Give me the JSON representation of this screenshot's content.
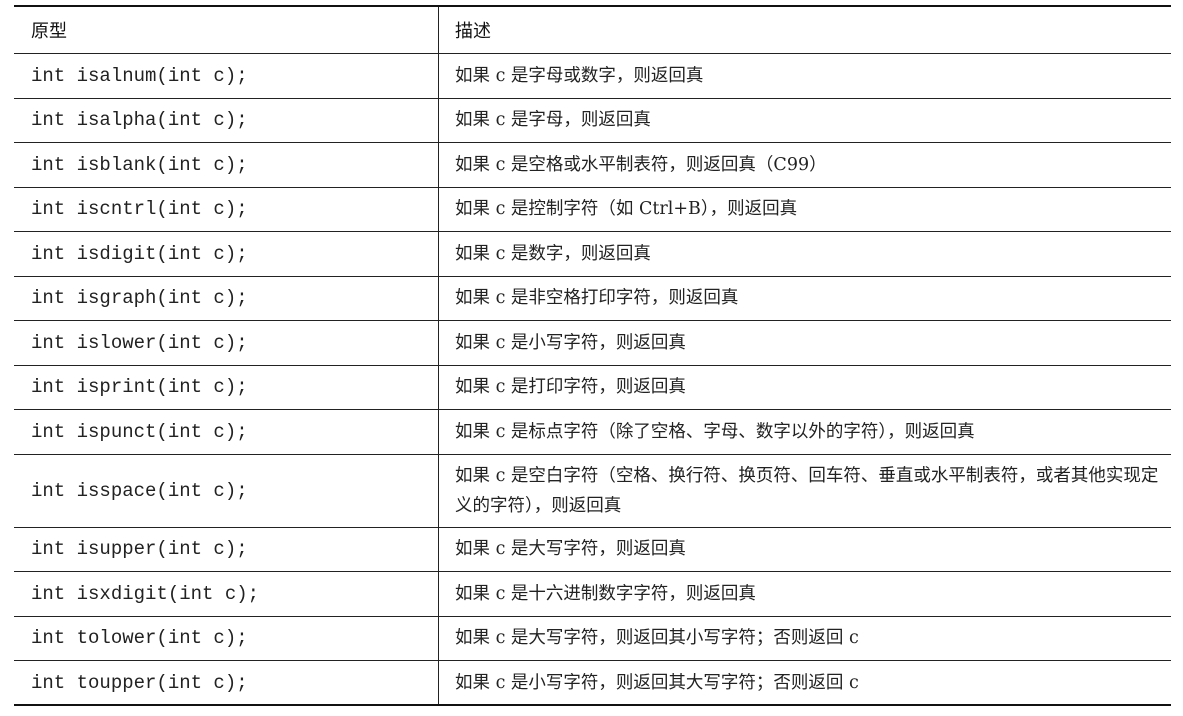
{
  "table": {
    "headers": [
      "原型",
      "描述"
    ],
    "rows": [
      {
        "prototype": "int isalnum(int c);",
        "description": "如果 c 是字母或数字，则返回真"
      },
      {
        "prototype": "int isalpha(int c);",
        "description": "如果 c 是字母，则返回真"
      },
      {
        "prototype": "int isblank(int c);",
        "description": "如果 c 是空格或水平制表符，则返回真（C99）"
      },
      {
        "prototype": "int iscntrl(int c);",
        "description": "如果 c 是控制字符（如 Ctrl+B），则返回真"
      },
      {
        "prototype": "int isdigit(int c);",
        "description": "如果 c 是数字，则返回真"
      },
      {
        "prototype": "int isgraph(int c);",
        "description": "如果 c 是非空格打印字符，则返回真"
      },
      {
        "prototype": "int islower(int c);",
        "description": "如果 c 是小写字符，则返回真"
      },
      {
        "prototype": "int isprint(int c);",
        "description": "如果 c 是打印字符，则返回真"
      },
      {
        "prototype": "int ispunct(int c);",
        "description": "如果 c 是标点字符（除了空格、字母、数字以外的字符），则返回真"
      },
      {
        "prototype": "int isspace(int c);",
        "description": "如果 c 是空白字符（空格、换行符、换页符、回车符、垂直或水平制表符，或者其他实现定义的字符），则返回真"
      },
      {
        "prototype": "int isupper(int c);",
        "description": "如果 c 是大写字符，则返回真"
      },
      {
        "prototype": "int isxdigit(int c);",
        "description": "如果 c 是十六进制数字字符，则返回真"
      },
      {
        "prototype": "int tolower(int c);",
        "description": "如果 c 是大写字符，则返回其小写字符；否则返回 c"
      },
      {
        "prototype": "int toupper(int c);",
        "description": "如果 c 是小写字符，则返回其大写字符；否则返回 c"
      }
    ]
  }
}
